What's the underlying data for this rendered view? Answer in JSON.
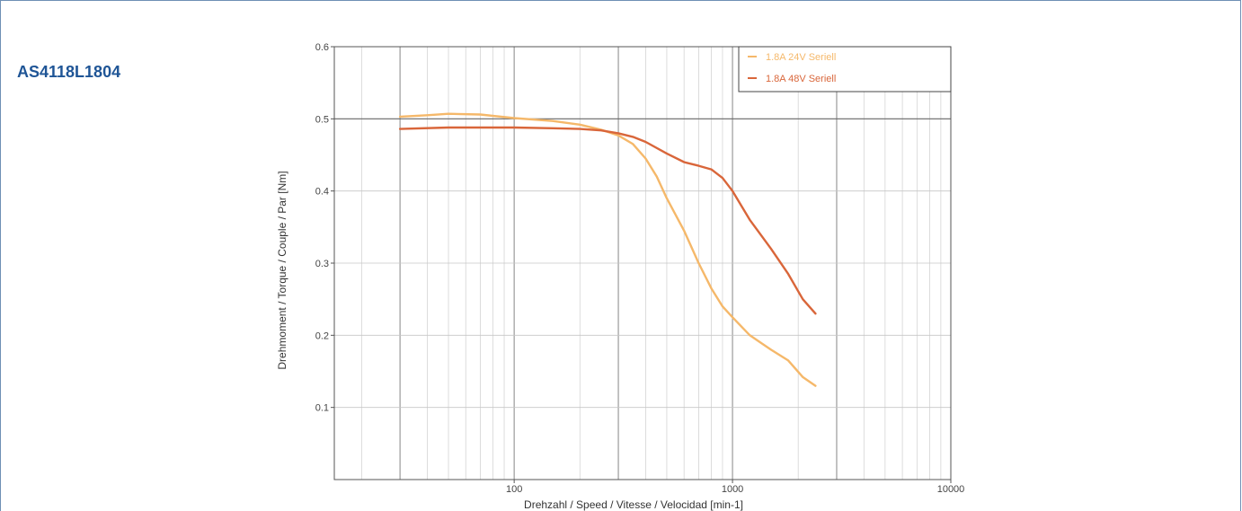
{
  "model_title": "AS4118L1804",
  "chart_data": {
    "type": "line",
    "xscale": "log",
    "xlim": [
      15,
      10000
    ],
    "ylim": [
      0,
      0.6
    ],
    "xlabel": "Drehzahl / Speed / Vitesse / Velocidad [min-1]",
    "ylabel": "Drehmoment / Torque / Couple / Par [Nm]",
    "x_ticks": [
      100,
      1000,
      10000
    ],
    "x_tick_labels": [
      "100",
      "1000",
      "10000"
    ],
    "y_ticks": [
      0.1,
      0.2,
      0.3,
      0.4,
      0.5,
      0.6
    ],
    "y_tick_labels": [
      "0.1",
      "0.2",
      "0.3",
      "0.4",
      "0.5",
      "0.6"
    ],
    "grid": true,
    "legend_position": "top-right",
    "series": [
      {
        "name": "1.8A 24V Seriell",
        "color": "#f5b86a",
        "x": [
          30,
          40,
          50,
          70,
          100,
          150,
          200,
          250,
          300,
          350,
          400,
          450,
          500,
          600,
          700,
          800,
          900,
          1000,
          1200,
          1500,
          1800,
          2100,
          2400
        ],
        "y": [
          0.503,
          0.505,
          0.507,
          0.506,
          0.501,
          0.497,
          0.492,
          0.485,
          0.477,
          0.465,
          0.445,
          0.42,
          0.39,
          0.345,
          0.3,
          0.265,
          0.24,
          0.225,
          0.2,
          0.18,
          0.165,
          0.142,
          0.13
        ]
      },
      {
        "name": "1.8A 48V Seriell",
        "color": "#d9663a",
        "x": [
          30,
          50,
          70,
          100,
          150,
          200,
          250,
          300,
          350,
          400,
          500,
          600,
          700,
          800,
          900,
          1000,
          1200,
          1500,
          1800,
          2100,
          2400
        ],
        "y": [
          0.486,
          0.488,
          0.488,
          0.488,
          0.487,
          0.486,
          0.484,
          0.48,
          0.475,
          0.468,
          0.452,
          0.44,
          0.435,
          0.43,
          0.418,
          0.4,
          0.36,
          0.32,
          0.285,
          0.25,
          0.23
        ]
      }
    ]
  }
}
